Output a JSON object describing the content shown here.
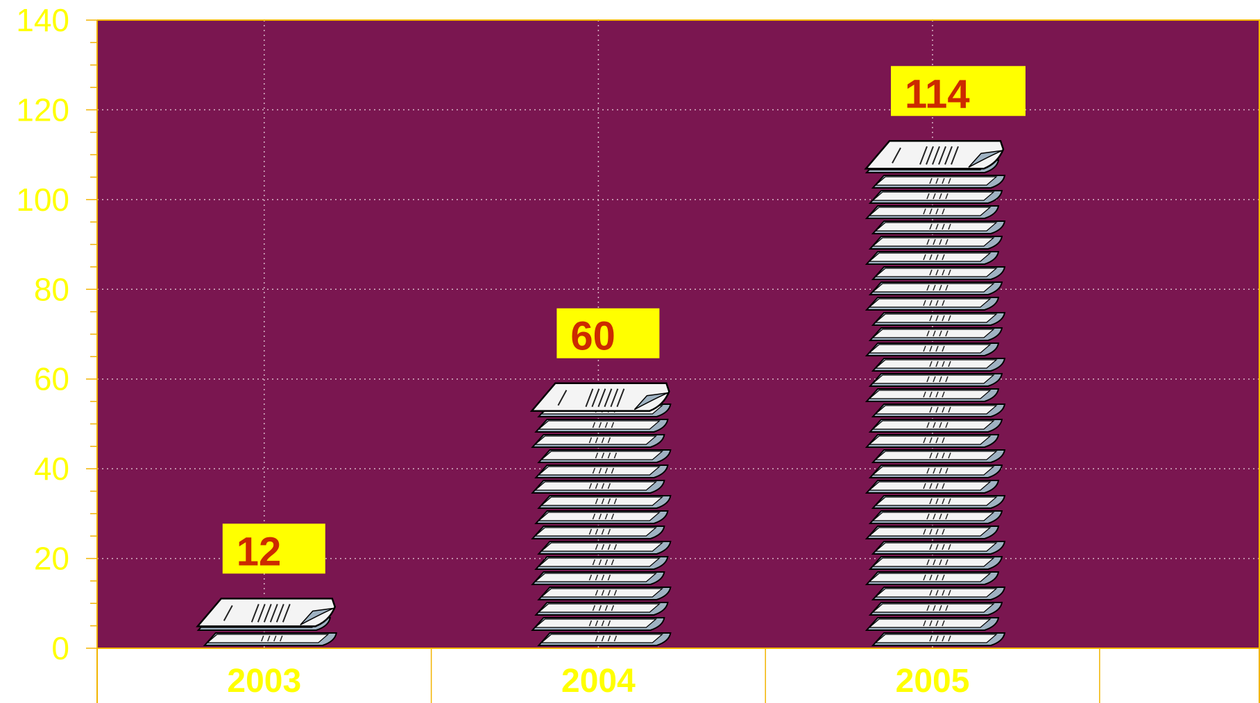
{
  "chart_data": {
    "type": "bar",
    "categories": [
      "2003",
      "2004",
      "2005"
    ],
    "values": [
      12,
      60,
      114
    ],
    "data_labels": [
      "12",
      "60",
      "114"
    ],
    "ylim": [
      0,
      140
    ],
    "yticks": [
      "0",
      "20",
      "40",
      "60",
      "80",
      "100",
      "120",
      "140"
    ],
    "grid": true,
    "legend": "none",
    "bar_style": "stacked paper sheets",
    "colors": {
      "plot_background": "#7a1650",
      "tick_labels": "#ffff00",
      "axis_lines": "#f2b400",
      "grid": "#d9b8c8",
      "data_label_box": "#ffff00",
      "data_label_text": "#cc2a00",
      "paper_top": "#f4f4f4",
      "paper_side": "#9fb2c2"
    }
  }
}
